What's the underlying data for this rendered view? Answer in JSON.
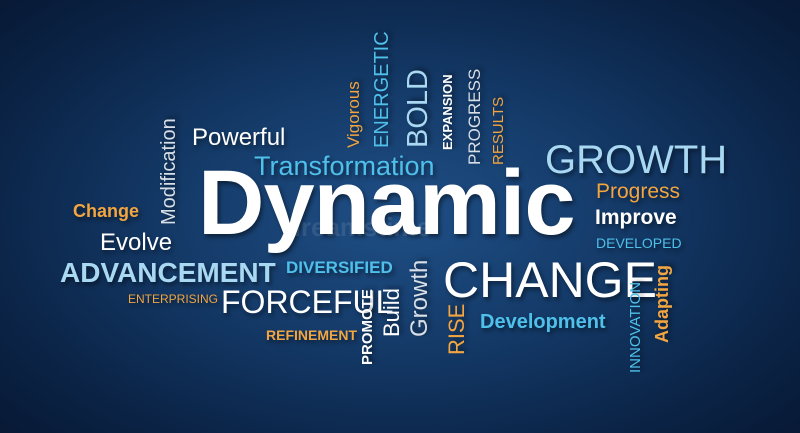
{
  "words": {
    "powerful": "Powerful",
    "transformation": "Transformation",
    "dynamic": "Dynamic",
    "growth_caps": "GROWTH",
    "progress": "Progress",
    "improve": "Improve",
    "developed": "DEVELOPED",
    "change": "Change",
    "modification": "Modification",
    "evolve": "Evolve",
    "advancement": "ADVANCEMENT",
    "enterprising": "ENTERPRISING",
    "forceful": "FORCEFUL",
    "refinement": "REFINEMENT",
    "diversified": "DIVERSIFIED",
    "change_caps": "CHANGE",
    "development": "Development",
    "vigorous": "Vigorous",
    "energetic": "ENERGETIC",
    "bold": "BOLD",
    "expansion": "EXPANSION",
    "progress_caps": "PROGRESS",
    "results": "RESULTS",
    "promote": "PROMOTE",
    "build": "Build",
    "growth": "Growth",
    "rise": "RISE",
    "innovation": "INNOVATION",
    "adapting": "Adapting"
  },
  "watermark": "dreamstime"
}
